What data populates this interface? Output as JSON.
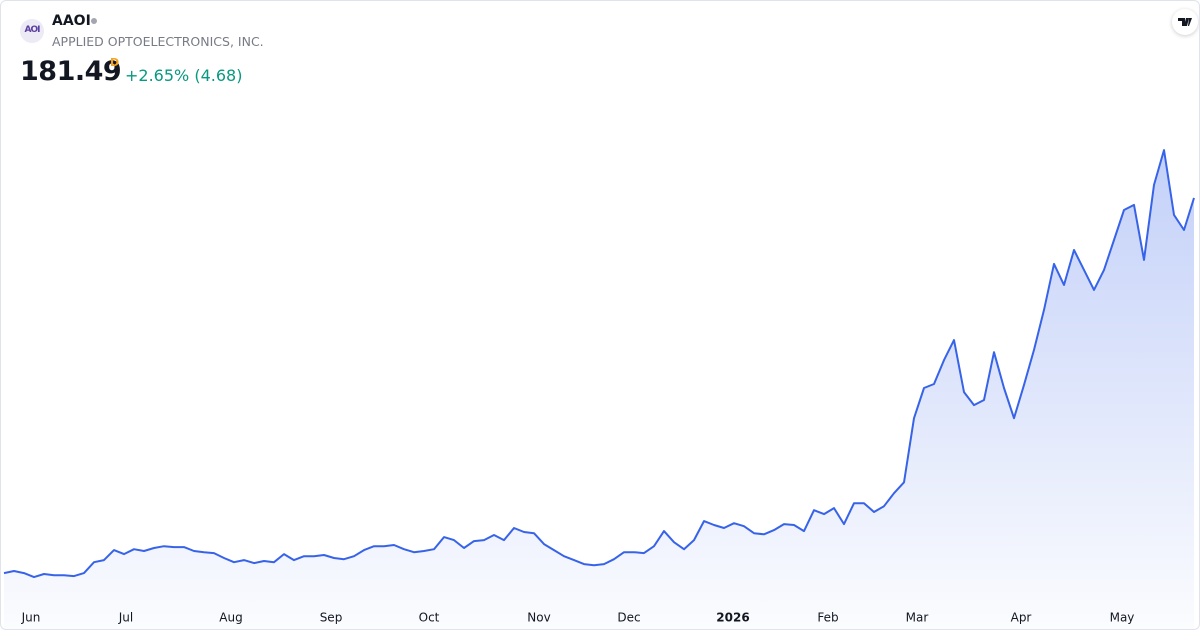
{
  "header": {
    "logo_text": "AOI",
    "symbol": "AAOI",
    "company": "APPLIED OPTOELECTRONICS, INC.",
    "price": "181.49",
    "interval": "D",
    "change": "+2.65% (4.68)"
  },
  "chart_data": {
    "type": "line",
    "color": "#3763e8",
    "values": [
      20.0,
      20.9,
      20.0,
      18.3,
      19.6,
      19.1,
      19.1,
      18.7,
      20.0,
      24.7,
      25.6,
      29.9,
      28.2,
      30.3,
      29.5,
      30.8,
      31.6,
      31.2,
      31.2,
      29.5,
      29.0,
      28.6,
      26.5,
      24.7,
      25.6,
      24.3,
      25.2,
      24.7,
      28.2,
      25.6,
      27.3,
      27.3,
      27.8,
      26.5,
      26.0,
      27.3,
      29.9,
      31.6,
      31.6,
      32.1,
      30.3,
      29.0,
      29.5,
      30.3,
      35.5,
      34.2,
      30.8,
      33.8,
      34.2,
      36.4,
      34.2,
      39.4,
      37.7,
      37.2,
      32.5,
      29.9,
      27.3,
      25.6,
      23.9,
      23.4,
      23.9,
      26.0,
      29.0,
      29.0,
      28.6,
      31.6,
      38.1,
      33.3,
      30.3,
      34.2,
      42.4,
      40.7,
      39.4,
      41.5,
      40.2,
      37.2,
      36.7,
      38.5,
      41.1,
      40.7,
      38.1,
      47.1,
      45.4,
      48.0,
      41.1,
      50.1,
      50.1,
      46.3,
      48.8,
      54.4,
      59.1,
      86.7,
      99.7,
      101.4,
      111.7,
      120.3,
      97.9,
      92.3,
      94.5,
      115.1,
      99.7,
      86.7,
      101.0,
      116.1,
      133.3,
      153.1,
      144.0,
      159.1,
      150.5,
      141.9,
      150.5,
      163.4,
      176.3,
      178.5,
      154.8,
      187.1,
      202.1,
      174.2,
      167.7,
      181.49
    ],
    "xlim": [
      0,
      119
    ],
    "ylim": [
      8,
      240
    ],
    "xticks": [
      {
        "value": 2.7,
        "label": "Jun"
      },
      {
        "value": 12.2,
        "label": "Jul"
      },
      {
        "value": 22.7,
        "label": "Aug"
      },
      {
        "value": 32.7,
        "label": "Sep"
      },
      {
        "value": 42.5,
        "label": "Oct"
      },
      {
        "value": 53.5,
        "label": "Nov"
      },
      {
        "value": 62.5,
        "label": "Dec"
      },
      {
        "value": 72.9,
        "label": "2026"
      },
      {
        "value": 82.4,
        "label": "Feb"
      },
      {
        "value": 91.3,
        "label": "Mar"
      },
      {
        "value": 101.7,
        "label": "Apr"
      },
      {
        "value": 111.8,
        "label": "May"
      }
    ],
    "grid": false
  }
}
